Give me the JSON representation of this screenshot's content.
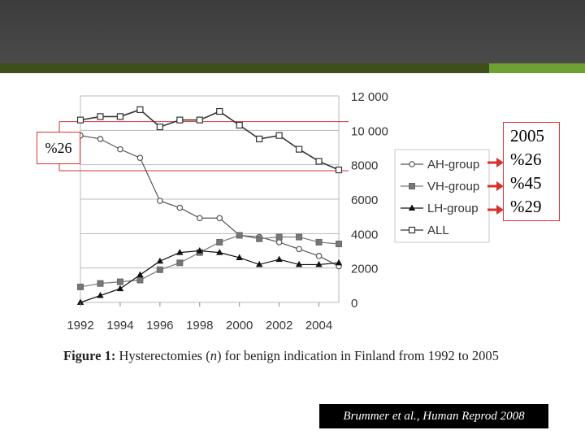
{
  "callout_left": "%26",
  "callout_right": [
    "2005",
    "%26",
    "%45",
    "%29"
  ],
  "caption": {
    "label": "Figure 1:",
    "text_before": " Hysterectomies (",
    "n": "n",
    "text_after": ") for benign indication in Finland from 1992 to 2005"
  },
  "citation": "Brummer et al., Human Reprod 2008",
  "colors": {
    "highlight": "#d33333",
    "banner": "#444444",
    "accent_dark": "#3f4f1c",
    "accent_light": "#6fa033"
  },
  "chart_data": {
    "type": "line",
    "x": [
      1992,
      1993,
      1994,
      1995,
      1996,
      1997,
      1998,
      1999,
      2000,
      2001,
      2002,
      2003,
      2004,
      2005
    ],
    "xlim": [
      1992,
      2005
    ],
    "ylim": [
      0,
      12000
    ],
    "x_ticks": [
      "1992",
      "1994",
      "1996",
      "1998",
      "2000",
      "2002",
      "2004"
    ],
    "x_tick_values": [
      1992,
      1994,
      1996,
      1998,
      2000,
      2002,
      2004
    ],
    "y_ticks": [
      "0",
      "2000",
      "4000",
      "6000",
      "8000",
      "10 000",
      "12 000"
    ],
    "y_tick_values": [
      0,
      2000,
      4000,
      6000,
      8000,
      10000,
      12000
    ],
    "grid": true,
    "legend_position": "right",
    "series": [
      {
        "name": "AH-group",
        "marker": "circle",
        "values": [
          9700,
          9500,
          8900,
          8400,
          5900,
          5500,
          4900,
          4900,
          3900,
          3800,
          3500,
          3100,
          2700,
          2100
        ]
      },
      {
        "name": "VH-group",
        "marker": "square-filled",
        "values": [
          900,
          1100,
          1200,
          1300,
          1900,
          2300,
          2900,
          3500,
          3900,
          3700,
          3800,
          3800,
          3500,
          3400
        ]
      },
      {
        "name": "LH-group",
        "marker": "triangle",
        "values": [
          0,
          400,
          800,
          1600,
          2400,
          2900,
          3000,
          2900,
          2600,
          2200,
          2500,
          2200,
          2200,
          2300
        ]
      },
      {
        "name": "ALL",
        "marker": "square-open",
        "values": [
          10600,
          10800,
          10800,
          11200,
          10200,
          10600,
          10600,
          11100,
          10300,
          9500,
          9700,
          8900,
          8200,
          7700
        ]
      }
    ]
  }
}
